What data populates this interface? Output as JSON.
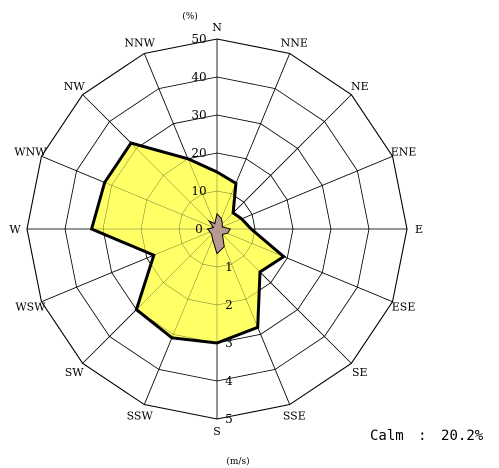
{
  "chart_data": {
    "type": "radar",
    "directions": [
      "N",
      "NNE",
      "NE",
      "ENE",
      "E",
      "ESE",
      "SE",
      "SSE",
      "S",
      "SSW",
      "SW",
      "WSW",
      "W",
      "WNW",
      "NW",
      "NNW"
    ],
    "frequency_axis": {
      "unit": "(%)",
      "ticks": [
        "0",
        "10",
        "20",
        "30",
        "40",
        "50"
      ],
      "range": [
        0,
        50
      ]
    },
    "speed_axis": {
      "unit": "(m/s)",
      "ticks": [
        "1",
        "2",
        "3",
        "4",
        "5"
      ],
      "range": [
        0,
        5
      ]
    },
    "series": [
      {
        "kind": "frequency",
        "fill": "#ffff66",
        "stroke": "#000000",
        "values": [
          15,
          13,
          6,
          7,
          9,
          19,
          16,
          28,
          30,
          31,
          30,
          18,
          33,
          32,
          32,
          20
        ]
      },
      {
        "kind": "mean_speed",
        "fill": "#b89a92",
        "stroke": "#000000",
        "values": [
          0.4,
          0.3,
          0.2,
          0.15,
          0.35,
          0.3,
          0.2,
          0.5,
          0.65,
          0.3,
          0.2,
          0.2,
          0.25,
          0.1,
          0.3,
          0.15
        ]
      }
    ],
    "calm": {
      "label": "Calm",
      "separator": ":",
      "value": "20.2%"
    },
    "grid": true
  }
}
